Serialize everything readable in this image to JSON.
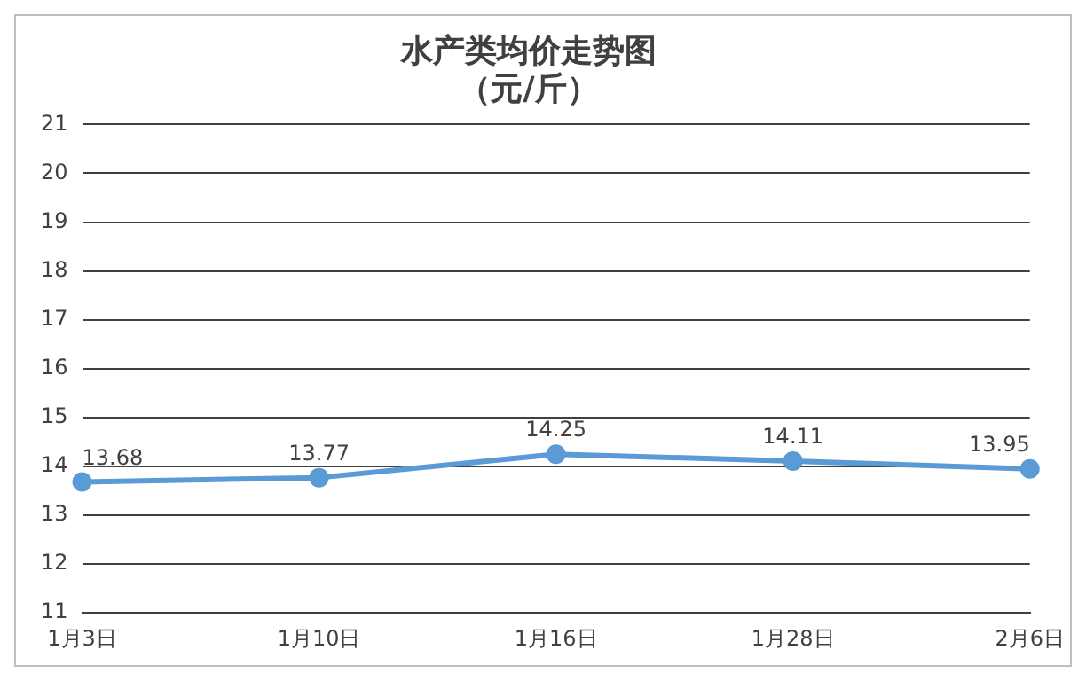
{
  "chart_data": {
    "type": "line",
    "title": "水产类均价走势图",
    "subtitle": "（元/斤）",
    "categories": [
      "1月3日",
      "1月10日",
      "1月16日",
      "1月28日",
      "2月6日"
    ],
    "series": [
      {
        "color": "#5b9bd5",
        "values": [
          13.68,
          13.77,
          14.25,
          14.11,
          13.95
        ]
      }
    ],
    "ylim": [
      11,
      21
    ],
    "yticks": [
      11,
      12,
      13,
      14,
      15,
      16,
      17,
      18,
      19,
      20,
      21
    ],
    "grid": "y",
    "legend": false,
    "marker": "circle",
    "line_style": "solid",
    "data_labels": true
  }
}
